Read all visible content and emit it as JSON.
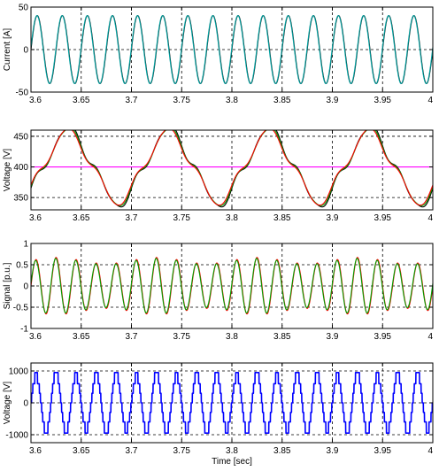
{
  "chart_data": [
    {
      "type": "line",
      "ylabel": "Current [A]",
      "xlabel": "",
      "xlim": [
        3.6,
        4.0
      ],
      "ylim": [
        -50,
        50
      ],
      "xticks": [
        "3.6",
        "3.65",
        "3.7",
        "3.75",
        "3.8",
        "3.85",
        "3.9",
        "3.95",
        "4"
      ],
      "yticks": [
        "-50",
        "0",
        "50"
      ],
      "grid": true,
      "series": [
        {
          "color": "#000000",
          "waveform": "sine",
          "frequency_hz": 40,
          "amplitude": 40,
          "offset": 0,
          "phase_deg": 0
        },
        {
          "color": "#00a0a0",
          "waveform": "sine",
          "frequency_hz": 40,
          "amplitude": 40,
          "offset": 0,
          "phase_deg": 4
        }
      ]
    },
    {
      "type": "line",
      "ylabel": "Voltage [V]",
      "xlabel": "",
      "xlim": [
        3.6,
        4.0
      ],
      "ylim": [
        330,
        460
      ],
      "xticks": [
        "3.6",
        "3.65",
        "3.7",
        "3.75",
        "3.8",
        "3.85",
        "3.9",
        "3.95",
        "4"
      ],
      "yticks": [
        "350",
        "400",
        "450"
      ],
      "grid": true,
      "series": [
        {
          "color": "#ff00ff",
          "waveform": "constant",
          "value": 400
        },
        {
          "color": "#000000",
          "waveform": "sine_with_harmonic",
          "frequency_hz": 10,
          "amplitude": 58,
          "offset": 400,
          "phase_deg": -45,
          "harmonic": 3,
          "harmonic_amplitude": 9,
          "ripple_amplitude": 4
        },
        {
          "color": "#00a000",
          "waveform": "sine_with_harmonic",
          "frequency_hz": 10,
          "amplitude": 56,
          "offset": 400,
          "phase_deg": -44,
          "harmonic": 3,
          "harmonic_amplitude": 9,
          "ripple_amplitude": 3
        },
        {
          "color": "#ff0000",
          "waveform": "sine_with_harmonic",
          "frequency_hz": 10,
          "amplitude": 55,
          "offset": 400,
          "phase_deg": -42,
          "harmonic": 3,
          "harmonic_amplitude": 9,
          "ripple_amplitude": 2
        }
      ]
    },
    {
      "type": "line",
      "ylabel": "Signal [p.u.]",
      "xlabel": "",
      "xlim": [
        3.6,
        4.0
      ],
      "ylim": [
        -1,
        1
      ],
      "xticks": [
        "3.6",
        "3.65",
        "3.7",
        "3.75",
        "3.8",
        "3.85",
        "3.9",
        "3.95",
        "4"
      ],
      "yticks": [
        "-1",
        "-0.5",
        "0",
        "0.5",
        "1"
      ],
      "grid": true,
      "series": [
        {
          "color": "#ff0000",
          "waveform": "sine_modulated",
          "frequency_hz": 50,
          "amplitude": 0.6,
          "offset": 0,
          "phase_deg": 0,
          "modulation_hz": 10,
          "modulation_depth": 0.12
        },
        {
          "color": "#00a000",
          "waveform": "sine_modulated",
          "frequency_hz": 50,
          "amplitude": 0.58,
          "offset": 0,
          "phase_deg": 6,
          "modulation_hz": 10,
          "modulation_depth": 0.12
        }
      ]
    },
    {
      "type": "line",
      "ylabel": "Voltage [V]",
      "xlabel": "Time [sec]",
      "xlim": [
        3.6,
        4.0
      ],
      "ylim": [
        -1250,
        1250
      ],
      "xticks": [
        "3.6",
        "3.65",
        "3.7",
        "3.75",
        "3.8",
        "3.85",
        "3.9",
        "3.95",
        "4"
      ],
      "yticks": [
        "-1000",
        "0",
        "1000"
      ],
      "grid": true,
      "series": [
        {
          "color": "#0000ff",
          "waveform": "staircase_sine",
          "frequency_hz": 50,
          "amplitude": 950,
          "offset": 0,
          "phase_deg": 0,
          "levels": [
            -950,
            -600,
            -300,
            0,
            300,
            600,
            950
          ],
          "envelope_hz": 10
        }
      ]
    }
  ]
}
